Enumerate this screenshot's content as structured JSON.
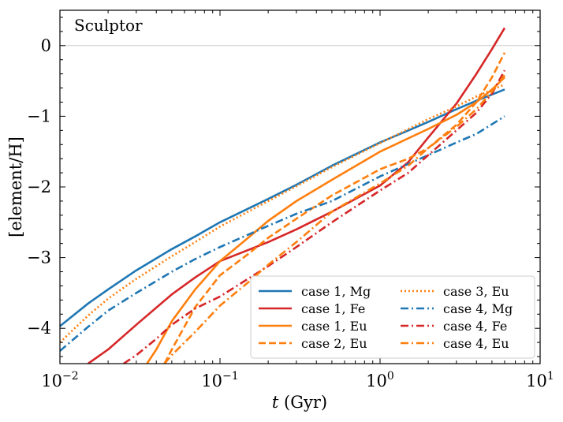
{
  "chart_data": {
    "type": "line",
    "title": "",
    "annotation": "Sculptor",
    "xlabel": "t (Gyr)",
    "xlabel_var": "t",
    "xlabel_unit": " (Gyr)",
    "ylabel": "[element/H]",
    "xscale": "log",
    "xlim": [
      0.01,
      10
    ],
    "ylim": [
      -4.5,
      0.5
    ],
    "grid": false,
    "reference_line_y": 0,
    "xticks": [
      {
        "value": 0.01,
        "base": "10",
        "exp": "−2"
      },
      {
        "value": 0.1,
        "base": "10",
        "exp": "−1"
      },
      {
        "value": 1,
        "base": "10",
        "exp": "0"
      },
      {
        "value": 10,
        "base": "10",
        "exp": "1"
      }
    ],
    "yticks": [
      {
        "value": 0,
        "label": "0"
      },
      {
        "value": -1,
        "label": "−1"
      },
      {
        "value": -2,
        "label": "−2"
      },
      {
        "value": -3,
        "label": "−3"
      },
      {
        "value": -4,
        "label": "−4"
      }
    ],
    "legend_position": "lower-right",
    "series": [
      {
        "name": "case 1, Mg",
        "color": "#1f77b4",
        "style": "solid",
        "x": [
          0.01,
          0.015,
          0.02,
          0.03,
          0.05,
          0.07,
          0.1,
          0.2,
          0.3,
          0.5,
          1,
          2,
          3,
          4,
          6
        ],
        "y": [
          -3.97,
          -3.65,
          -3.45,
          -3.18,
          -2.88,
          -2.7,
          -2.5,
          -2.17,
          -1.97,
          -1.7,
          -1.37,
          -1.08,
          -0.9,
          -0.78,
          -0.62
        ]
      },
      {
        "name": "case 1, Fe",
        "color": "#d62728",
        "style": "solid",
        "x": [
          0.015,
          0.02,
          0.03,
          0.05,
          0.07,
          0.1,
          0.2,
          0.3,
          0.5,
          1,
          1.5,
          2,
          3,
          4,
          5,
          6
        ],
        "y": [
          -4.5,
          -4.3,
          -3.95,
          -3.52,
          -3.28,
          -3.05,
          -2.78,
          -2.6,
          -2.35,
          -1.98,
          -1.65,
          -1.3,
          -0.82,
          -0.4,
          -0.05,
          0.25
        ]
      },
      {
        "name": "case 1, Eu",
        "color": "#ff7f0e",
        "style": "solid",
        "x": [
          0.035,
          0.04,
          0.05,
          0.07,
          0.1,
          0.15,
          0.2,
          0.3,
          0.5,
          1,
          2,
          3,
          4,
          5,
          6
        ],
        "y": [
          -4.5,
          -4.3,
          -3.9,
          -3.45,
          -3.05,
          -2.72,
          -2.48,
          -2.2,
          -1.9,
          -1.5,
          -1.18,
          -0.98,
          -0.8,
          -0.62,
          -0.45
        ]
      },
      {
        "name": "case 2, Eu",
        "color": "#ff7f0e",
        "style": "dashed",
        "x": [
          0.045,
          0.05,
          0.07,
          0.1,
          0.15,
          0.2,
          0.3,
          0.5,
          1,
          1.5,
          2,
          3,
          4,
          5,
          6
        ],
        "y": [
          -4.5,
          -4.3,
          -3.7,
          -3.25,
          -2.95,
          -2.72,
          -2.45,
          -2.12,
          -1.75,
          -1.6,
          -1.45,
          -1.12,
          -0.8,
          -0.45,
          -0.1
        ]
      },
      {
        "name": "case 3, Eu",
        "color": "#ff7f0e",
        "style": "dotted",
        "x": [
          0.01,
          0.015,
          0.02,
          0.03,
          0.05,
          0.07,
          0.1,
          0.2,
          0.3,
          0.5,
          1,
          2,
          3,
          4,
          6
        ],
        "y": [
          -4.2,
          -3.82,
          -3.58,
          -3.3,
          -2.98,
          -2.78,
          -2.56,
          -2.2,
          -1.99,
          -1.72,
          -1.38,
          -1.04,
          -0.86,
          -0.72,
          -0.55
        ]
      },
      {
        "name": "case 4, Mg",
        "color": "#1f77b4",
        "style": "dashdot",
        "x": [
          0.01,
          0.015,
          0.02,
          0.03,
          0.05,
          0.07,
          0.1,
          0.2,
          0.3,
          0.5,
          1,
          2,
          3,
          4,
          6
        ],
        "y": [
          -4.32,
          -3.98,
          -3.75,
          -3.5,
          -3.2,
          -3.02,
          -2.85,
          -2.55,
          -2.38,
          -2.2,
          -1.85,
          -1.55,
          -1.37,
          -1.25,
          -1.0
        ]
      },
      {
        "name": "case 4, Fe",
        "color": "#d62728",
        "style": "dashdot",
        "x": [
          0.025,
          0.03,
          0.04,
          0.05,
          0.07,
          0.1,
          0.2,
          0.3,
          0.5,
          1,
          1.5,
          2,
          3,
          4,
          5,
          6
        ],
        "y": [
          -4.5,
          -4.38,
          -4.15,
          -3.95,
          -3.72,
          -3.55,
          -3.12,
          -2.85,
          -2.5,
          -2.05,
          -1.8,
          -1.55,
          -1.2,
          -0.95,
          -0.68,
          -0.35
        ]
      },
      {
        "name": "case 4, Eu",
        "color": "#ff7f0e",
        "style": "dashdot",
        "x": [
          0.045,
          0.05,
          0.07,
          0.1,
          0.15,
          0.2,
          0.3,
          0.5,
          1,
          1.5,
          2,
          3,
          4,
          5,
          6
        ],
        "y": [
          -4.5,
          -4.38,
          -4.05,
          -3.68,
          -3.35,
          -3.1,
          -2.78,
          -2.35,
          -1.95,
          -1.7,
          -1.45,
          -1.15,
          -0.9,
          -0.65,
          -0.42
        ]
      }
    ]
  }
}
